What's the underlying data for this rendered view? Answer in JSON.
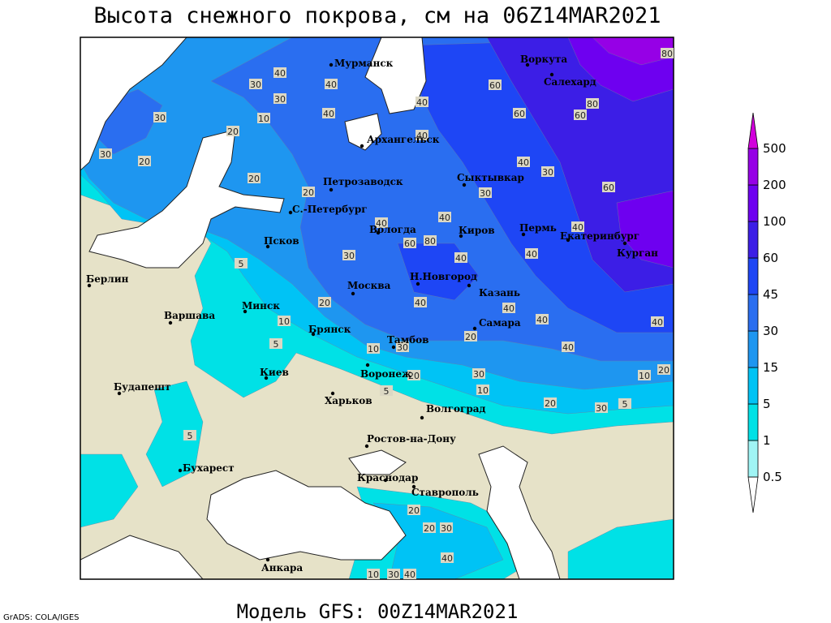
{
  "title": "Высота снежного покрова, см на 06Z14MAR2021",
  "subtitle": "Модель GFS: 00Z14MAR2021",
  "credit": "GrADS: COLA/IGES",
  "cities": [
    "Мурманск",
    "Воркута",
    "Салехард",
    "Архангельск",
    "Сыктывкар",
    "Петрозаводск",
    "С.-Петербург",
    "Вологда",
    "Киров",
    "Пермь",
    "Екатеринбург",
    "Курган",
    "Псков",
    "Н.Новгород",
    "Казань",
    "Москва",
    "Берлин",
    "Минск",
    "Варшава",
    "Самара",
    "Брянск",
    "Тамбов",
    "Воронеж",
    "Киев",
    "Харьков",
    "Будапешт",
    "Волгоград",
    "Ростов-на-Дону",
    "Бухарест",
    "Краснодар",
    "Ставрополь",
    "Анкара"
  ],
  "contour_labels": [
    30,
    40,
    30,
    30,
    20,
    30,
    10,
    20,
    20,
    20,
    40,
    40,
    40,
    40,
    60,
    60,
    60,
    80,
    80,
    30,
    40,
    60,
    80,
    40,
    40,
    30,
    60,
    40,
    40,
    40,
    30,
    40,
    20,
    10,
    5,
    5,
    10,
    30,
    20,
    20,
    40,
    40,
    40,
    30,
    40,
    10,
    20,
    5,
    10,
    20,
    30,
    5,
    5,
    20,
    20,
    30,
    40,
    30,
    40,
    10
  ],
  "legend": {
    "levels": [
      0.5,
      1,
      5,
      15,
      30,
      45,
      60,
      100,
      200,
      500
    ],
    "colors": [
      "#ffffff",
      "#a0f5f5",
      "#00e1e6",
      "#00c3f5",
      "#1e96f0",
      "#2a6ef0",
      "#1e46f5",
      "#3c1ee6",
      "#6e00f0",
      "#9600e6",
      "#d200dc"
    ]
  }
}
